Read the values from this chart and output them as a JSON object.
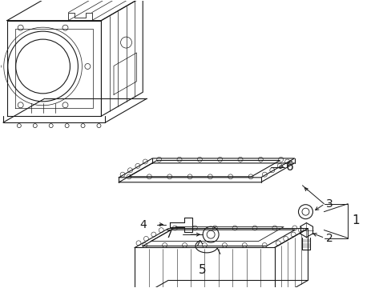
{
  "background_color": "#ffffff",
  "line_color": "#1a1a1a",
  "label_fontsize": 10,
  "lw": 0.8
}
